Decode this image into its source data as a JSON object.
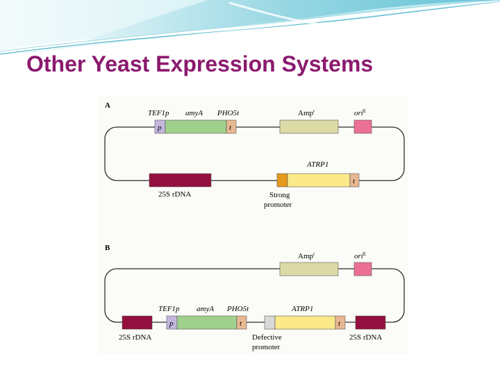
{
  "slide": {
    "title": "Other Yeast Expression Systems"
  },
  "colors": {
    "title": "#8b1a6f",
    "promoter_p": "#c2b6dc",
    "amyA": "#9fd08c",
    "terminator_t": "#e8b891",
    "ampR": "#dcdaa6",
    "oriE": "#ec6f95",
    "rDNA": "#930f3e",
    "ATRP1": "#fbe98a",
    "strong_promoter": "#e39a1e",
    "defective_promoter": "#d9d9d9"
  },
  "panel_a": {
    "label": "A",
    "tef1p": "TEF1p",
    "amyA": "amyA",
    "pho5t": "PHO5t",
    "p": "p",
    "t": "t",
    "amp_base": "Amp",
    "amp_sup": "r",
    "ori_base": "ori",
    "ori_sup": "E",
    "atrp1": "ATRP1",
    "t2": "t",
    "rdna": "25S rDNA",
    "strong_line1": "Strong",
    "strong_line2": "promoter"
  },
  "panel_b": {
    "label": "B",
    "amp_base": "Amp",
    "amp_sup": "r",
    "ori_base": "ori",
    "ori_sup": "E",
    "tef1p": "TEF1p",
    "amyA": "amyA",
    "pho5t": "PHO5t",
    "atrp1": "ATRP1",
    "p": "p",
    "t": "t",
    "t2": "t",
    "rdna_left": "25S rDNA",
    "rdna_right": "25S rDNA",
    "defective_line1": "Defective",
    "defective_line2": "promoter"
  }
}
